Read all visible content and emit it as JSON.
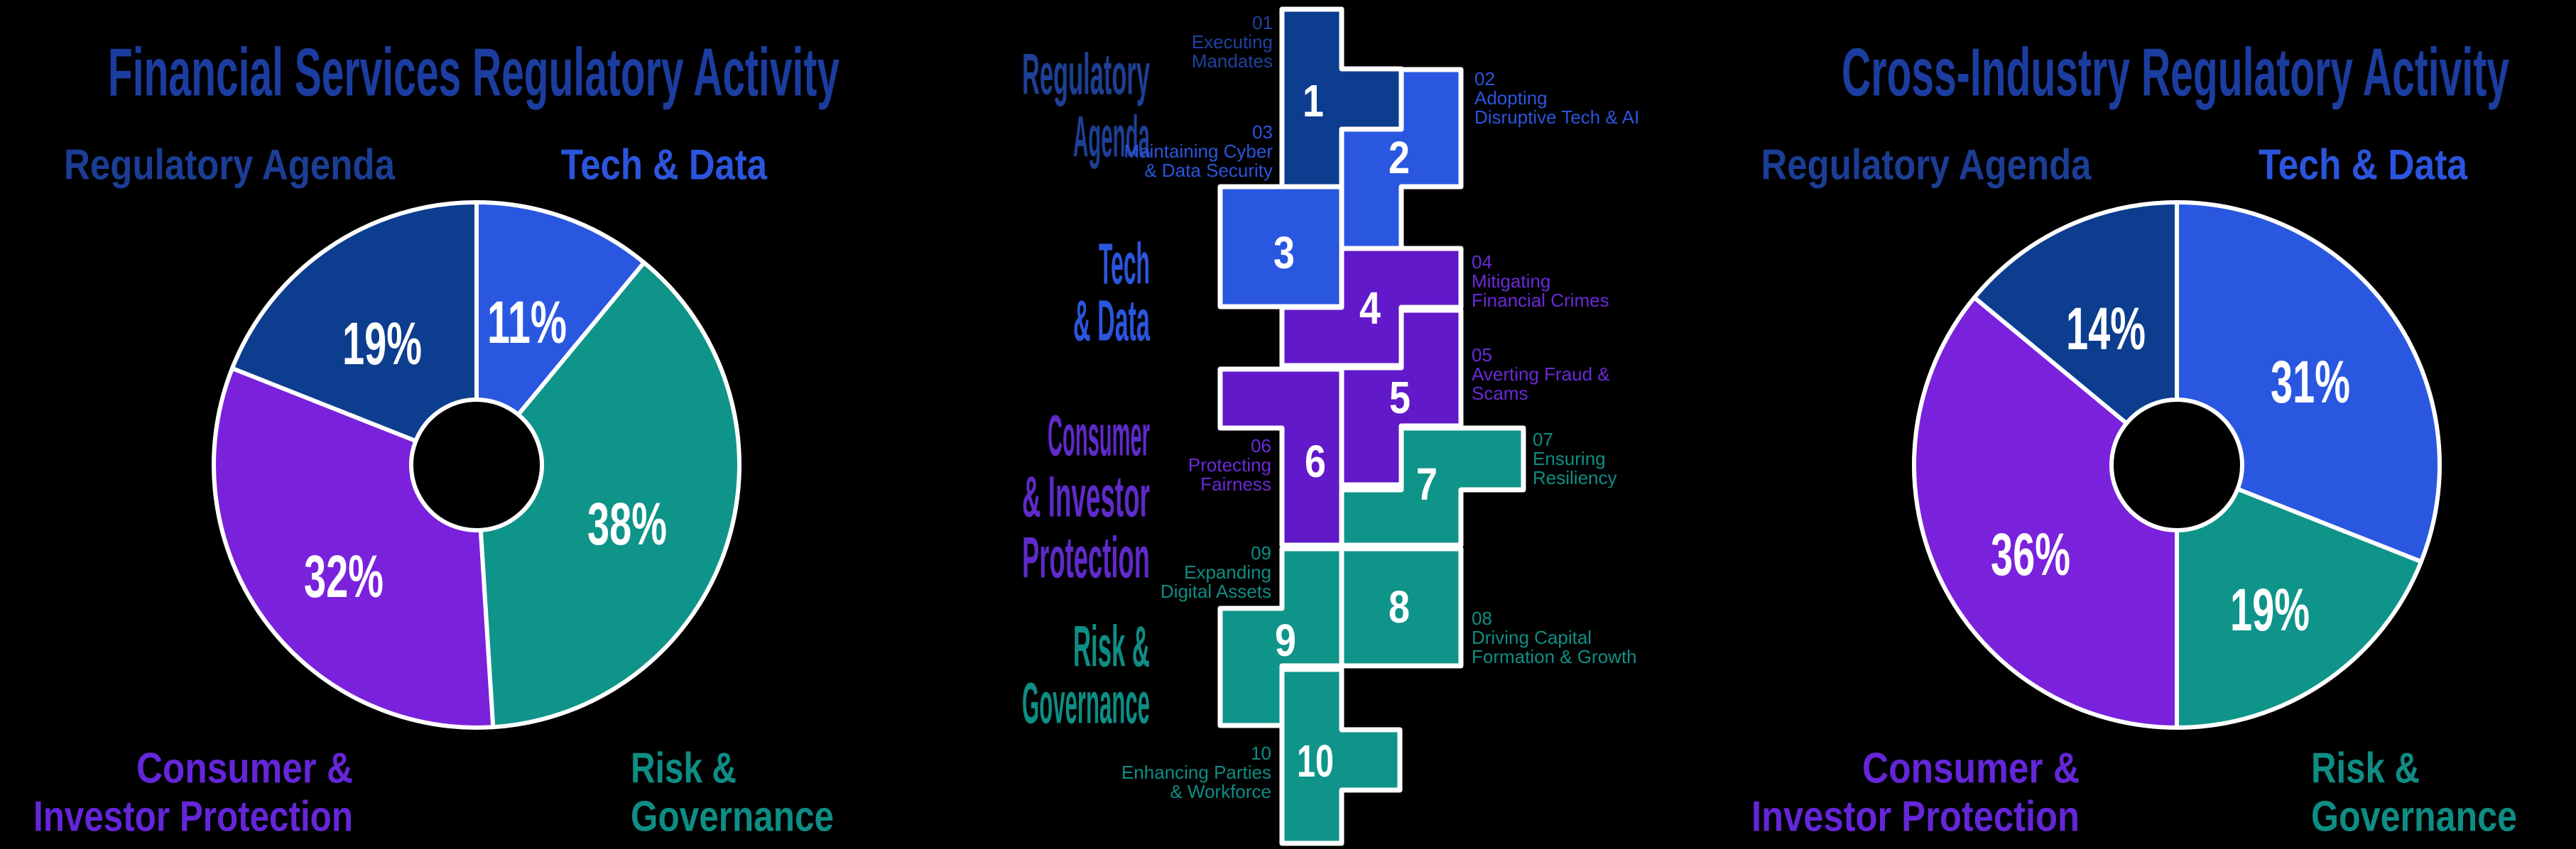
{
  "background": "#000000",
  "palette": {
    "navy": "#0d3d8e",
    "blue": "#2a57e0",
    "purple": "#7a21dc",
    "purple_block": "#6119c9",
    "teal": "#0f948a",
    "white": "#ffffff",
    "title_color": "#1c3da0",
    "label_navy": "#1e429f",
    "label_blue": "#2b55dd",
    "label_purple": "#6a2ad8",
    "label_teal": "#0f8d84",
    "cat_navy": "#1d4095",
    "cat_blue": "#2b55dd",
    "cat_purple": "#5f2ac9",
    "cat_teal": "#0e8d84"
  },
  "chart_data": [
    {
      "type": "pie",
      "donut": true,
      "title": "Financial Services Regulatory Activity",
      "start_angle_deg": 0,
      "direction": "clockwise",
      "hole_ratio": 0.25,
      "legend_position": "none",
      "slices": [
        {
          "category": "Tech & Data",
          "value": 11,
          "label": "11%",
          "color": "blue"
        },
        {
          "category": "Risk & Governance",
          "value": 38,
          "label": "38%",
          "color": "teal"
        },
        {
          "category": "Consumer & Investor Protection",
          "value": 32,
          "label": "32%",
          "color": "purple"
        },
        {
          "category": "Regulatory Agenda",
          "value": 19,
          "label": "19%",
          "color": "navy"
        }
      ],
      "corner_labels": {
        "top_left": {
          "text": "Regulatory Agenda",
          "color": "navy"
        },
        "top_right": {
          "text": "Tech & Data",
          "color": "blue"
        },
        "bottom_left": {
          "lines": [
            "Consumer &",
            "Investor Protection"
          ],
          "color": "purple"
        },
        "bottom_right": {
          "lines": [
            "Risk &",
            "Governance"
          ],
          "color": "teal"
        }
      }
    },
    {
      "type": "pie",
      "donut": true,
      "title": "Cross-Industry Regulatory Activity",
      "start_angle_deg": 0,
      "direction": "clockwise",
      "hole_ratio": 0.25,
      "legend_position": "none",
      "slices": [
        {
          "category": "Tech & Data",
          "value": 31,
          "label": "31%",
          "color": "blue"
        },
        {
          "category": "Risk & Governance",
          "value": 19,
          "label": "19%",
          "color": "teal"
        },
        {
          "category": "Consumer & Investor Protection",
          "value": 36,
          "label": "36%",
          "color": "purple"
        },
        {
          "category": "Regulatory Agenda",
          "value": 14,
          "label": "14%",
          "color": "navy"
        }
      ],
      "corner_labels": {
        "top_left": {
          "text": "Regulatory Agenda",
          "color": "navy"
        },
        "top_right": {
          "text": "Tech & Data",
          "color": "blue"
        },
        "bottom_left": {
          "lines": [
            "Consumer &",
            "Investor Protection"
          ],
          "color": "purple"
        },
        "bottom_right": {
          "lines": [
            "Risk &",
            "Governance"
          ],
          "color": "teal"
        }
      }
    }
  ],
  "center": {
    "categories": [
      {
        "lines": [
          "Regulatory",
          "Agenda"
        ],
        "color": "navy"
      },
      {
        "lines": [
          "Tech",
          "& Data"
        ],
        "color": "blue"
      },
      {
        "lines": [
          "Consumer",
          "& Investor",
          "Protection"
        ],
        "color": "purple"
      },
      {
        "lines": [
          "Risk &",
          "Governance"
        ],
        "color": "teal"
      }
    ],
    "items": [
      {
        "num": "1",
        "code": "01",
        "lines": [
          "Executing",
          "Mandates"
        ],
        "color": "navy"
      },
      {
        "num": "2",
        "code": "02",
        "lines": [
          "Adopting",
          "Disruptive Tech & AI"
        ],
        "color": "blue"
      },
      {
        "num": "3",
        "code": "03",
        "lines": [
          "Maintaining Cyber",
          "& Data Security"
        ],
        "color": "blue"
      },
      {
        "num": "4",
        "code": "04",
        "lines": [
          "Mitigating",
          "Financial Crimes"
        ],
        "color": "purple_block"
      },
      {
        "num": "5",
        "code": "05",
        "lines": [
          "Averting Fraud &",
          "Scams"
        ],
        "color": "purple_block"
      },
      {
        "num": "6",
        "code": "06",
        "lines": [
          "Protecting",
          "Fairness"
        ],
        "color": "purple_block"
      },
      {
        "num": "7",
        "code": "07",
        "lines": [
          "Ensuring",
          "Resiliency"
        ],
        "color": "teal"
      },
      {
        "num": "8",
        "code": "08",
        "lines": [
          "Driving Capital",
          "Formation & Growth"
        ],
        "color": "teal"
      },
      {
        "num": "9",
        "code": "09",
        "lines": [
          "Expanding",
          "Digital Assets"
        ],
        "color": "teal"
      },
      {
        "num": "10",
        "code": "10",
        "lines": [
          "Enhancing Parties",
          "& Workforce"
        ],
        "color": "teal"
      }
    ]
  }
}
